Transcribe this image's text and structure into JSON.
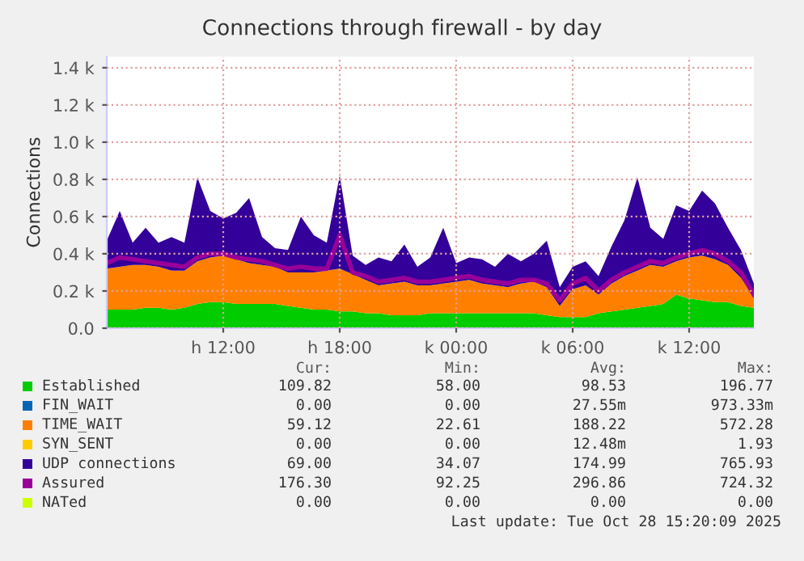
{
  "chart_data": {
    "type": "area",
    "stacked": true,
    "title": "Connections through firewall - by day",
    "ylabel": "Connections",
    "categories": [
      null,
      null,
      null,
      null,
      null,
      null,
      null,
      null,
      null,
      "h 12:00",
      null,
      null,
      null,
      null,
      null,
      null,
      null,
      null,
      "h 18:00",
      null,
      null,
      null,
      null,
      null,
      null,
      null,
      null,
      "k 00:00",
      null,
      null,
      null,
      null,
      null,
      null,
      null,
      null,
      "k 06:00",
      null,
      null,
      null,
      null,
      null,
      null,
      null,
      null,
      "k 12:00",
      null,
      null,
      null,
      null,
      null
    ],
    "series": [
      {
        "name": "Established",
        "color": "#00cc00",
        "values": [
          100,
          100,
          100,
          110,
          110,
          100,
          110,
          130,
          140,
          140,
          130,
          130,
          130,
          130,
          120,
          110,
          100,
          100,
          90,
          90,
          80,
          80,
          70,
          70,
          70,
          80,
          80,
          80,
          80,
          80,
          80,
          80,
          80,
          80,
          70,
          60,
          60,
          60,
          80,
          90,
          100,
          110,
          120,
          130,
          180,
          160,
          150,
          140,
          140,
          120,
          110
        ]
      },
      {
        "name": "FIN_WAIT",
        "color": "#0066b3",
        "values": [
          null,
          null,
          null,
          null,
          null,
          null,
          null,
          null,
          null,
          null,
          null,
          null,
          null,
          null,
          null,
          null,
          null,
          null,
          null,
          null,
          null,
          null,
          null,
          null,
          null,
          null,
          null,
          null,
          null,
          null,
          null,
          null,
          null,
          null,
          null,
          null,
          null,
          null,
          null,
          null,
          null,
          null,
          null,
          null,
          null,
          null,
          null,
          null,
          null,
          null,
          null
        ]
      },
      {
        "name": "TIME_WAIT",
        "color": "#ff8000",
        "values": [
          220,
          230,
          240,
          230,
          220,
          210,
          200,
          230,
          240,
          250,
          240,
          220,
          210,
          200,
          180,
          190,
          200,
          210,
          230,
          200,
          180,
          150,
          170,
          180,
          160,
          150,
          160,
          170,
          180,
          160,
          150,
          140,
          160,
          170,
          150,
          60,
          150,
          170,
          100,
          150,
          180,
          200,
          220,
          200,
          180,
          220,
          240,
          230,
          200,
          150,
          60
        ]
      },
      {
        "name": "SYN_SENT",
        "color": "#ffcc00",
        "values": [
          null,
          null,
          null,
          null,
          null,
          null,
          null,
          null,
          null,
          null,
          null,
          null,
          null,
          null,
          null,
          null,
          null,
          null,
          null,
          null,
          null,
          null,
          null,
          null,
          null,
          null,
          null,
          null,
          null,
          null,
          null,
          null,
          null,
          null,
          null,
          null,
          null,
          null,
          null,
          null,
          null,
          null,
          null,
          null,
          null,
          null,
          null,
          null,
          null,
          null,
          null
        ]
      },
      {
        "name": "UDP connections",
        "color": "#330099",
        "values": [
          150,
          300,
          120,
          200,
          130,
          180,
          150,
          450,
          250,
          200,
          250,
          350,
          150,
          100,
          120,
          300,
          200,
          150,
          500,
          100,
          80,
          150,
          120,
          200,
          100,
          150,
          300,
          100,
          120,
          130,
          100,
          180,
          120,
          150,
          250,
          100,
          120,
          130,
          100,
          200,
          300,
          500,
          200,
          150,
          300,
          250,
          350,
          300,
          200,
          150,
          70
        ]
      },
      {
        "name": "Assured",
        "color": "#990099",
        "type": "line",
        "values": [
          350,
          380,
          370,
          360,
          350,
          340,
          330,
          380,
          400,
          400,
          380,
          370,
          360,
          340,
          320,
          330,
          320,
          320,
          500,
          300,
          280,
          250,
          260,
          270,
          250,
          250,
          260,
          270,
          280,
          260,
          250,
          240,
          260,
          260,
          240,
          150,
          240,
          270,
          200,
          260,
          300,
          330,
          360,
          350,
          380,
          400,
          420,
          400,
          360,
          300,
          180
        ]
      },
      {
        "name": "NATed",
        "color": "#ccff00",
        "values": [
          null,
          null,
          null,
          null,
          null,
          null,
          null,
          null,
          null,
          null,
          null,
          null,
          null,
          null,
          null,
          null,
          null,
          null,
          null,
          null,
          null,
          null,
          null,
          null,
          null,
          null,
          null,
          null,
          null,
          null,
          null,
          null,
          null,
          null,
          null,
          null,
          null,
          null,
          null,
          null,
          null,
          null,
          null,
          null,
          null,
          null,
          null,
          null,
          null,
          null,
          null
        ]
      }
    ],
    "ylim": [
      0,
      1460
    ],
    "yticks": [
      {
        "value": 0,
        "label": "0.0"
      },
      {
        "value": 200,
        "label": "0.2 k"
      },
      {
        "value": 400,
        "label": "0.4 k"
      },
      {
        "value": 600,
        "label": "0.6 k"
      },
      {
        "value": 800,
        "label": "0.8 k"
      },
      {
        "value": 1000,
        "label": "1.0 k"
      },
      {
        "value": 1200,
        "label": "1.2 k"
      },
      {
        "value": 1400,
        "label": "1.4 k"
      }
    ],
    "grid": true,
    "legend": "bottom",
    "annotations": [
      "Cur:",
      "Min:",
      "Avg:",
      "Max:",
      "109.82",
      "58.00",
      "98.53",
      "196.77",
      "0.00",
      "0.00",
      "27.55m",
      "973.33m",
      "59.12",
      "22.61",
      "188.22",
      "572.28",
      "0.00",
      "0.00",
      "12.48m",
      "1.93",
      "69.00",
      "34.07",
      "174.99",
      "765.93",
      "176.30",
      "92.25",
      "296.86",
      "724.32",
      "0.00",
      "0.00",
      "0.00",
      "0.00",
      "Last update: Tue Oct 28 15:20:09 2025"
    ]
  }
}
